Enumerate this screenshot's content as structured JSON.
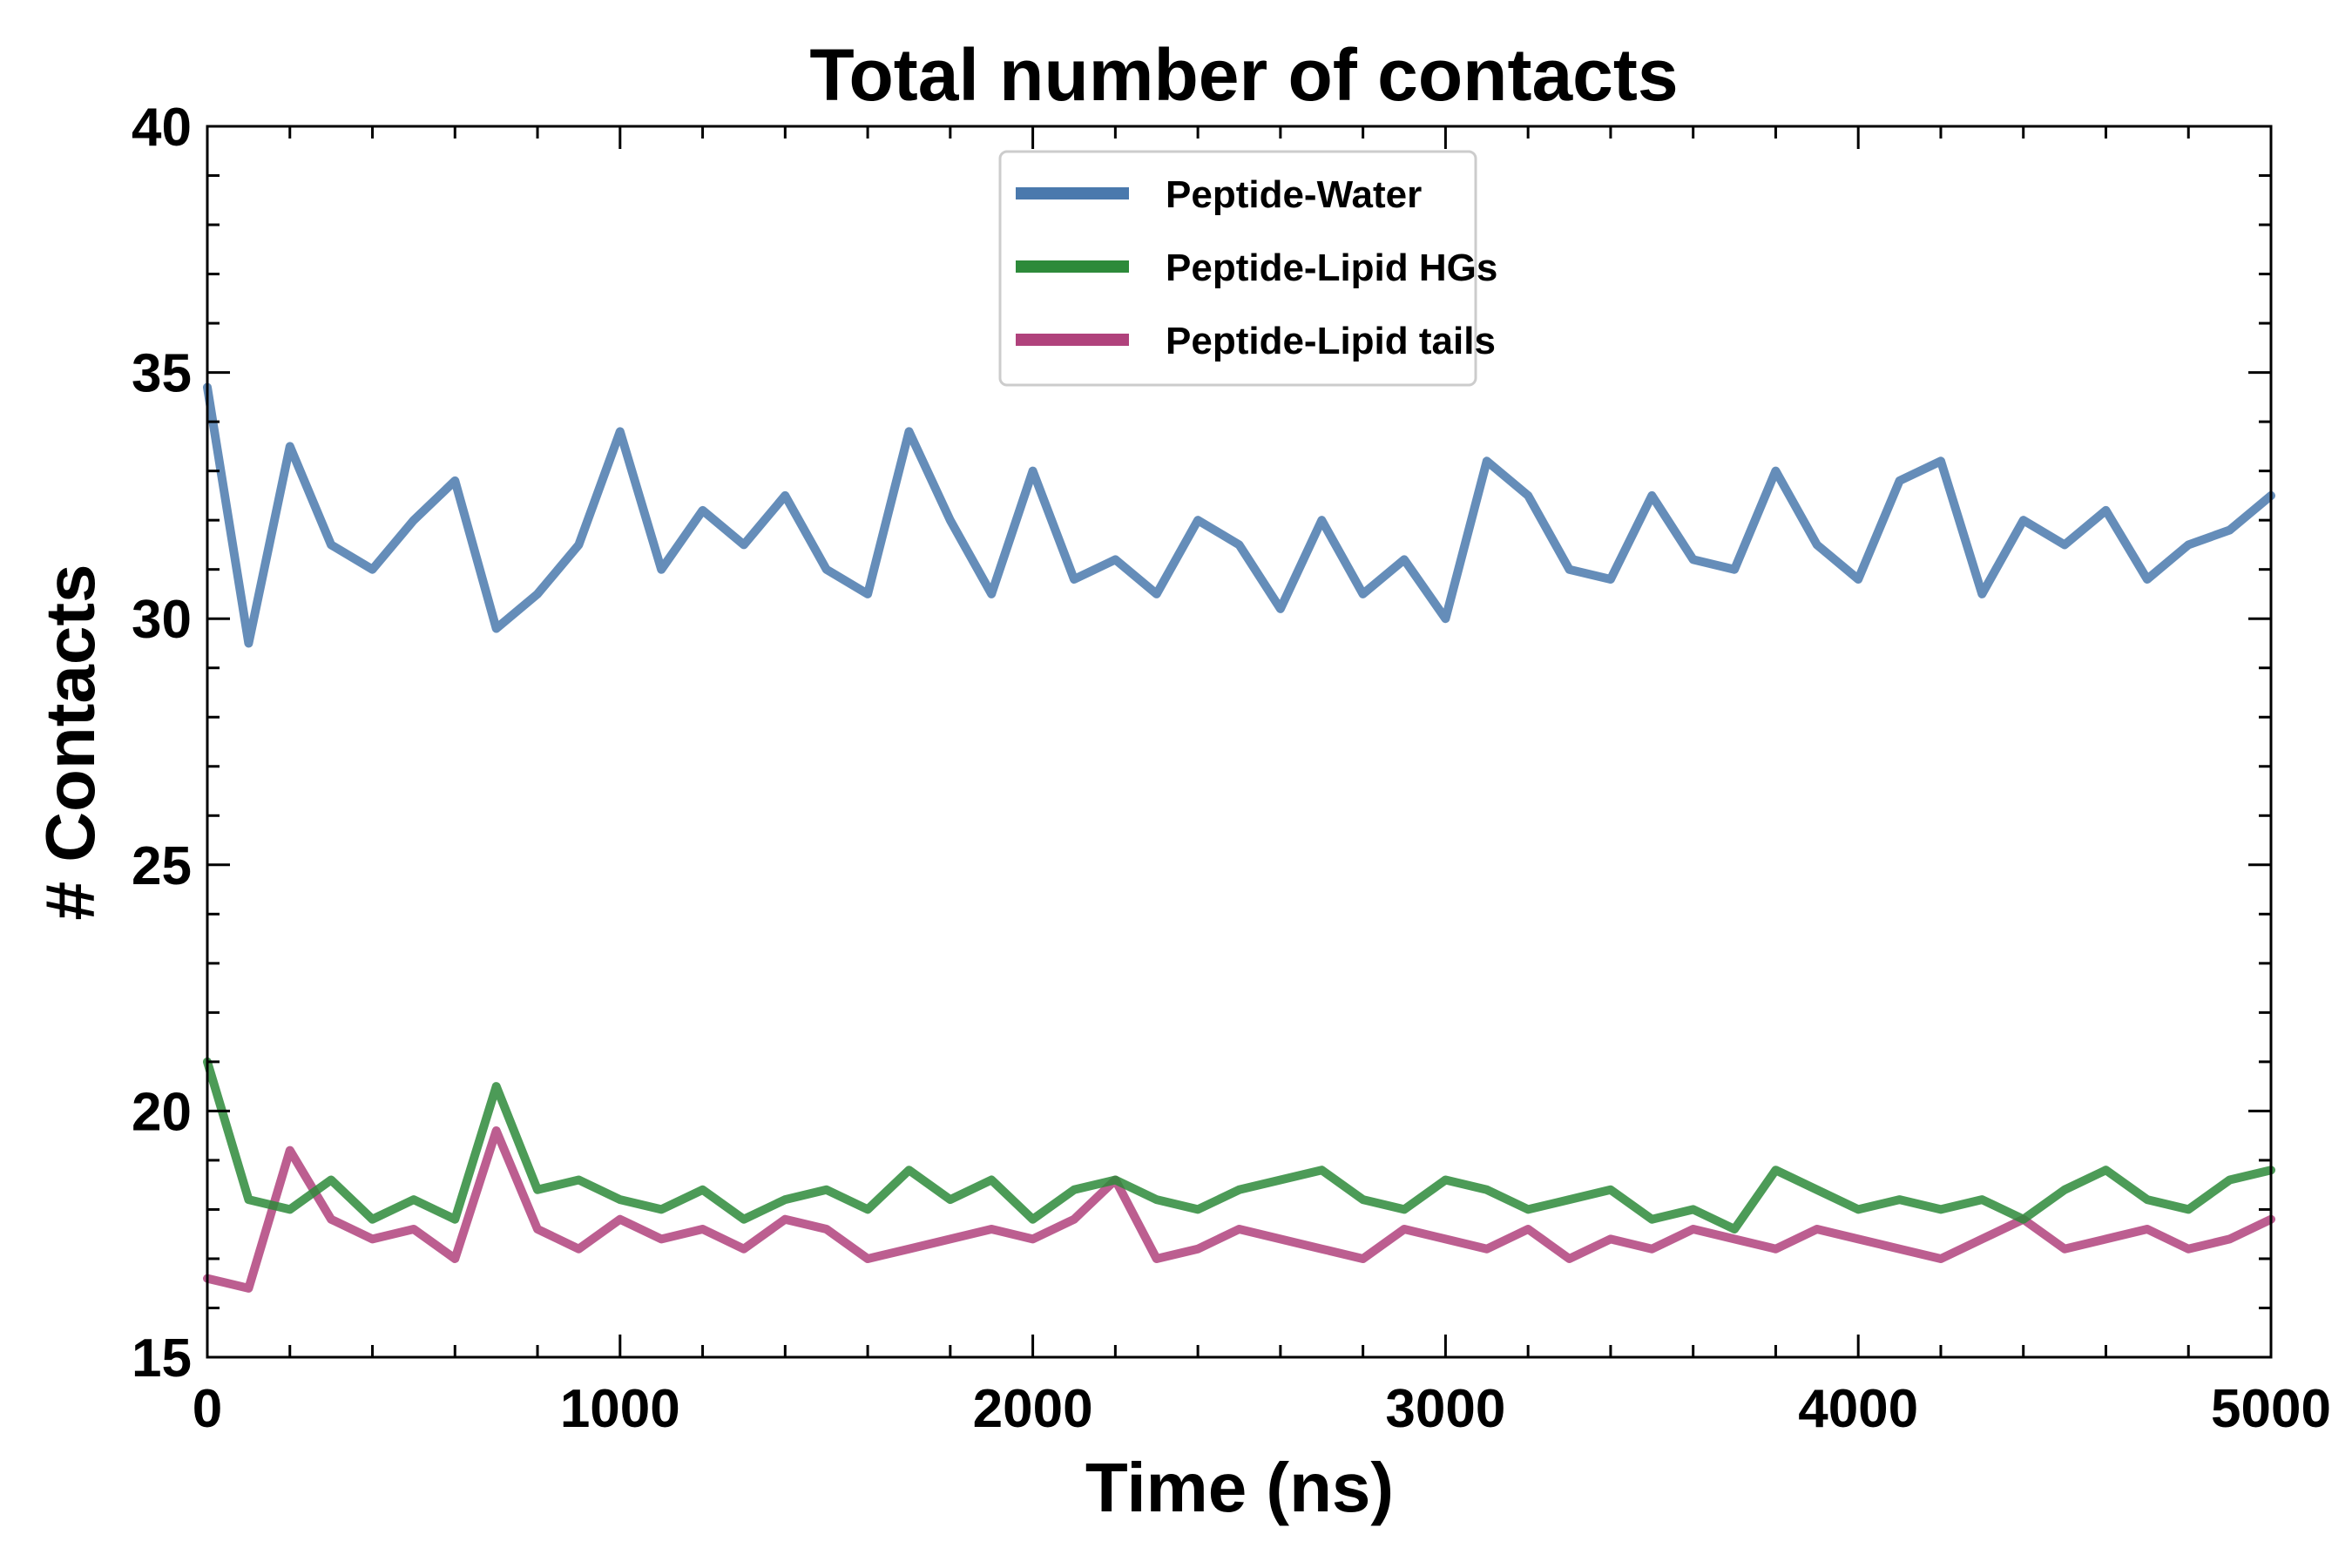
{
  "chart_data": {
    "type": "line",
    "title": "Total number of contacts",
    "xlabel": "Time (ns)",
    "ylabel": "# Contacts",
    "xlim": [
      0,
      5000
    ],
    "ylim": [
      15,
      40
    ],
    "xticks": [
      0,
      1000,
      2000,
      3000,
      4000,
      5000
    ],
    "yticks": [
      15,
      20,
      25,
      30,
      35,
      40
    ],
    "grid": false,
    "legend_position": "top-center",
    "x": [
      0,
      100,
      200,
      300,
      400,
      500,
      600,
      700,
      800,
      900,
      1000,
      1100,
      1200,
      1300,
      1400,
      1500,
      1600,
      1700,
      1800,
      1900,
      2000,
      2100,
      2200,
      2300,
      2400,
      2500,
      2600,
      2700,
      2800,
      2900,
      3000,
      3100,
      3200,
      3300,
      3400,
      3500,
      3600,
      3700,
      3800,
      3900,
      4000,
      4100,
      4200,
      4300,
      4400,
      4500,
      4600,
      4700,
      4800,
      4900,
      5000
    ],
    "series": [
      {
        "name": "Peptide-Water",
        "color": "#4a79ad",
        "values": [
          34.7,
          29.5,
          33.5,
          31.5,
          31.0,
          32.0,
          32.8,
          29.8,
          30.5,
          31.5,
          33.8,
          31.0,
          32.2,
          31.5,
          32.5,
          31.0,
          30.5,
          33.8,
          32.0,
          30.5,
          33.0,
          30.8,
          31.2,
          30.5,
          32.0,
          31.5,
          30.2,
          32.0,
          30.5,
          31.2,
          30.0,
          33.2,
          32.5,
          31.0,
          30.8,
          32.5,
          31.2,
          31.0,
          33.0,
          31.5,
          30.8,
          32.8,
          33.2,
          30.5,
          32.0,
          31.5,
          32.2,
          30.8,
          31.5,
          31.8,
          32.5
        ]
      },
      {
        "name": "Peptide-Lipid HGs",
        "color": "#2d8a3a",
        "values": [
          21.0,
          18.2,
          18.0,
          18.6,
          17.8,
          18.2,
          17.8,
          20.5,
          18.4,
          18.6,
          18.2,
          18.0,
          18.4,
          17.8,
          18.2,
          18.4,
          18.0,
          18.8,
          18.2,
          18.6,
          17.8,
          18.4,
          18.6,
          18.2,
          18.0,
          18.4,
          18.6,
          18.8,
          18.2,
          18.0,
          18.6,
          18.4,
          18.0,
          18.2,
          18.4,
          17.8,
          18.0,
          17.6,
          18.8,
          18.4,
          18.0,
          18.2,
          18.0,
          18.2,
          17.8,
          18.4,
          18.8,
          18.2,
          18.0,
          18.6,
          18.8
        ]
      },
      {
        "name": "Peptide-Lipid tails",
        "color": "#b0427c",
        "values": [
          16.6,
          16.4,
          19.2,
          17.8,
          17.4,
          17.6,
          17.0,
          19.6,
          17.6,
          17.2,
          17.8,
          17.4,
          17.6,
          17.2,
          17.8,
          17.6,
          17.0,
          17.2,
          17.4,
          17.6,
          17.4,
          17.8,
          18.6,
          17.0,
          17.2,
          17.6,
          17.4,
          17.2,
          17.0,
          17.6,
          17.4,
          17.2,
          17.6,
          17.0,
          17.4,
          17.2,
          17.6,
          17.4,
          17.2,
          17.6,
          17.4,
          17.2,
          17.0,
          17.4,
          17.8,
          17.2,
          17.4,
          17.6,
          17.2,
          17.4,
          17.8
        ]
      }
    ]
  }
}
